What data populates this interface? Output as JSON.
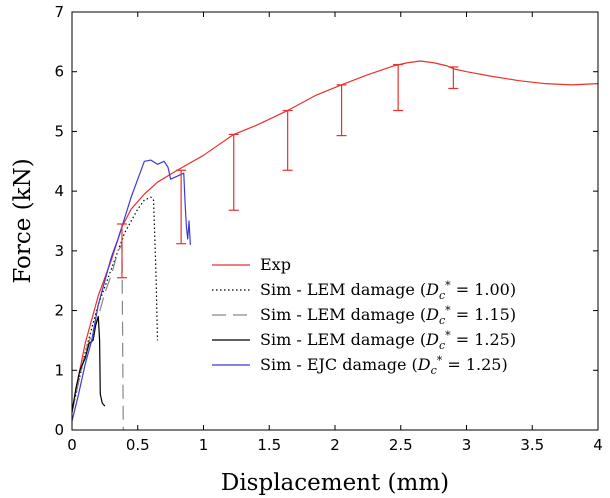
{
  "chart_data": {
    "type": "line",
    "xlabel": "Displacement (mm)",
    "ylabel": "Force (kN)",
    "xlim": [
      0,
      4
    ],
    "ylim": [
      0,
      7
    ],
    "x_ticks": [
      "0",
      "0.5",
      "1",
      "1.5",
      "2",
      "2.5",
      "3",
      "3.5",
      "4"
    ],
    "y_ticks": [
      "0",
      "1",
      "2",
      "3",
      "4",
      "5",
      "6",
      "7"
    ],
    "grid": false,
    "legend_position": "lower-right",
    "series": [
      {
        "name": "Exp",
        "color": "#e8312f",
        "dash": "solid",
        "points": [
          [
            0,
            0.3
          ],
          [
            0.05,
            0.9
          ],
          [
            0.1,
            1.45
          ],
          [
            0.2,
            2.25
          ],
          [
            0.3,
            2.85
          ],
          [
            0.38,
            3.4
          ],
          [
            0.45,
            3.7
          ],
          [
            0.55,
            3.95
          ],
          [
            0.65,
            4.15
          ],
          [
            0.8,
            4.35
          ],
          [
            1.0,
            4.6
          ],
          [
            1.23,
            4.95
          ],
          [
            1.4,
            5.1
          ],
          [
            1.64,
            5.35
          ],
          [
            1.85,
            5.6
          ],
          [
            2.05,
            5.78
          ],
          [
            2.25,
            5.95
          ],
          [
            2.45,
            6.1
          ],
          [
            2.55,
            6.15
          ],
          [
            2.65,
            6.18
          ],
          [
            2.75,
            6.15
          ],
          [
            2.85,
            6.1
          ],
          [
            2.9,
            6.05
          ],
          [
            3.0,
            6.0
          ],
          [
            3.2,
            5.92
          ],
          [
            3.4,
            5.85
          ],
          [
            3.6,
            5.8
          ],
          [
            3.8,
            5.78
          ],
          [
            4.0,
            5.8
          ]
        ]
      },
      {
        "name": "Sim - LEM damage (Dc* = 1.00)",
        "label_prefix": "Sim - LEM damage (",
        "label_suffix": " = 1.00)",
        "color": "#000000",
        "dash": "1.5,2.5",
        "points": [
          [
            0,
            0.3
          ],
          [
            0.05,
            0.8
          ],
          [
            0.1,
            1.3
          ],
          [
            0.15,
            1.7
          ],
          [
            0.2,
            2.1
          ],
          [
            0.3,
            2.7
          ],
          [
            0.4,
            3.3
          ],
          [
            0.5,
            3.7
          ],
          [
            0.55,
            3.85
          ],
          [
            0.6,
            3.9
          ],
          [
            0.62,
            3.85
          ],
          [
            0.63,
            3.2
          ],
          [
            0.64,
            2.5
          ],
          [
            0.65,
            1.5
          ]
        ]
      },
      {
        "name": "Sim - LEM damage (Dc* = 1.15)",
        "label_prefix": "Sim - LEM damage (",
        "label_suffix": " = 1.15)",
        "color": "#888888",
        "dash": "14,7",
        "points": [
          [
            0,
            0.3
          ],
          [
            0.05,
            0.8
          ],
          [
            0.1,
            1.3
          ],
          [
            0.15,
            1.6
          ],
          [
            0.2,
            1.9
          ],
          [
            0.25,
            2.3
          ],
          [
            0.3,
            2.6
          ],
          [
            0.35,
            3.0
          ],
          [
            0.38,
            3.1
          ],
          [
            0.39,
            0.0
          ]
        ]
      },
      {
        "name": "Sim - LEM damage (Dc* = 1.25)",
        "label_prefix": "Sim - LEM damage (",
        "label_suffix": " = 1.25)",
        "color": "#000000",
        "dash": "solid",
        "points": [
          [
            0,
            0.3
          ],
          [
            0.03,
            0.7
          ],
          [
            0.06,
            1.0
          ],
          [
            0.1,
            1.2
          ],
          [
            0.13,
            1.45
          ],
          [
            0.16,
            1.5
          ],
          [
            0.18,
            1.75
          ],
          [
            0.2,
            1.9
          ],
          [
            0.21,
            1.5
          ],
          [
            0.215,
            0.6
          ],
          [
            0.23,
            0.45
          ],
          [
            0.25,
            0.4
          ]
        ]
      },
      {
        "name": "Sim - EJC damage (Dc* = 1.25)",
        "label_prefix": "Sim - EJC damage (",
        "label_suffix": " = 1.25)",
        "color": "#3a3ad8",
        "dash": "solid",
        "points": [
          [
            0,
            0.15
          ],
          [
            0.05,
            0.6
          ],
          [
            0.1,
            1.1
          ],
          [
            0.15,
            1.5
          ],
          [
            0.2,
            2.1
          ],
          [
            0.25,
            2.5
          ],
          [
            0.3,
            2.9
          ],
          [
            0.35,
            3.2
          ],
          [
            0.4,
            3.55
          ],
          [
            0.45,
            3.9
          ],
          [
            0.5,
            4.2
          ],
          [
            0.55,
            4.5
          ],
          [
            0.6,
            4.52
          ],
          [
            0.65,
            4.45
          ],
          [
            0.7,
            4.5
          ],
          [
            0.73,
            4.4
          ],
          [
            0.75,
            4.2
          ],
          [
            0.8,
            4.25
          ],
          [
            0.85,
            4.3
          ],
          [
            0.86,
            3.8
          ],
          [
            0.87,
            3.4
          ],
          [
            0.88,
            3.2
          ],
          [
            0.89,
            3.5
          ],
          [
            0.9,
            3.1
          ]
        ]
      }
    ],
    "error_bars": {
      "color": "#e8312f",
      "bars": [
        {
          "x": 0.38,
          "low": 2.55,
          "high": 3.45
        },
        {
          "x": 0.83,
          "low": 3.12,
          "high": 4.35
        },
        {
          "x": 1.23,
          "low": 3.68,
          "high": 4.95
        },
        {
          "x": 1.64,
          "low": 4.35,
          "high": 5.35
        },
        {
          "x": 2.05,
          "low": 4.93,
          "high": 5.78
        },
        {
          "x": 2.48,
          "low": 5.35,
          "high": 6.12
        },
        {
          "x": 2.9,
          "low": 5.72,
          "high": 6.08
        }
      ]
    },
    "legend_symbol": "D",
    "legend_symbol_sub": "c",
    "legend_symbol_sup": "*"
  }
}
